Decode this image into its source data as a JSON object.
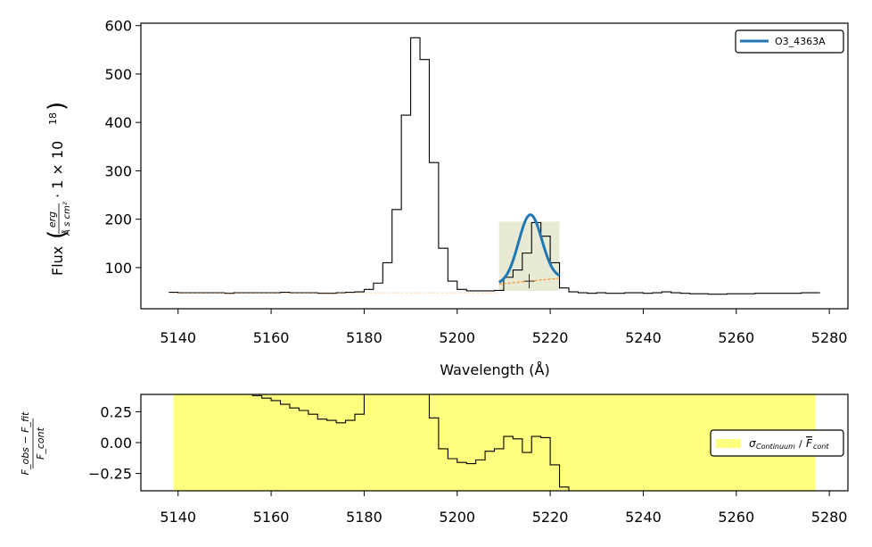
{
  "chart_data": [
    {
      "type": "line",
      "title": "",
      "xlabel": "Wavelength (Å)",
      "ylabel": "Flux",
      "ylabel_unit_numerator": "erg",
      "ylabel_unit_denominator": "Å s cm²",
      "ylabel_scale": "· 1 × 10",
      "ylabel_exponent": "18",
      "xlim": [
        5132,
        5284
      ],
      "ylim": [
        15,
        605
      ],
      "xticks": [
        5140,
        5160,
        5180,
        5200,
        5220,
        5240,
        5260,
        5280
      ],
      "yticks": [
        100,
        200,
        300,
        400,
        500,
        600
      ],
      "legend_location": "top-right",
      "legend": [
        "O3_4363A"
      ],
      "colors": {
        "spectrum": "#000000",
        "fit": "#1f77b4",
        "continuum": "#ff7f0e",
        "band": "#e9ead4"
      },
      "spectrum_step": {
        "x": [
          5139,
          5141,
          5143,
          5145,
          5147,
          5149,
          5151,
          5153,
          5155,
          5157,
          5159,
          5161,
          5163,
          5165,
          5167,
          5169,
          5171,
          5173,
          5175,
          5177,
          5179,
          5181,
          5183,
          5185,
          5187,
          5189,
          5191,
          5193,
          5195,
          5197,
          5199,
          5201,
          5203,
          5205,
          5207,
          5209,
          5211,
          5213,
          5215,
          5217,
          5219,
          5221,
          5223,
          5225,
          5227,
          5229,
          5231,
          5233,
          5235,
          5237,
          5239,
          5241,
          5243,
          5245,
          5247,
          5249,
          5251,
          5253,
          5255,
          5257,
          5259,
          5261,
          5263,
          5265,
          5267,
          5269,
          5271,
          5273,
          5275,
          5277
        ],
        "y": [
          49,
          48,
          48,
          48,
          48,
          48,
          47,
          48,
          48,
          48,
          48,
          48,
          49,
          48,
          48,
          48,
          47,
          47,
          48,
          49,
          50,
          55,
          68,
          110,
          220,
          415,
          575,
          530,
          317,
          140,
          72,
          55,
          52,
          52,
          52,
          53,
          80,
          95,
          130,
          193,
          165,
          110,
          58,
          50,
          48,
          47,
          48,
          47,
          47,
          48,
          48,
          47,
          48,
          50,
          48,
          47,
          46,
          46,
          45,
          45,
          46,
          46,
          46,
          47,
          47,
          47,
          47,
          47,
          48,
          48
        ]
      },
      "gaussian_fit": {
        "name": "O3_4363A",
        "x_range": [
          5209,
          5222
        ],
        "center": 5215.7,
        "amplitude": 137,
        "sigma": 2.5,
        "baseline_start": 66,
        "baseline_end": 78
      },
      "continuum_line": {
        "x": [
          5209,
          5222
        ],
        "y": [
          66,
          78
        ]
      },
      "fit_band": {
        "x": [
          5209,
          5222
        ],
        "top": 195,
        "bottom": 52
      },
      "marker": {
        "x": 5215.5,
        "y": 72
      }
    },
    {
      "type": "line",
      "title": "",
      "xlabel": "",
      "ylabel": "F_obs − F_fit / F_cont",
      "ylabel_numerator": "F_obs − F_fit",
      "ylabel_denominator": "F_cont",
      "xlim": [
        5132,
        5284
      ],
      "ylim": [
        -0.39,
        0.39
      ],
      "xticks": [
        5140,
        5160,
        5180,
        5200,
        5220,
        5240,
        5260,
        5280
      ],
      "yticks": [
        0.25,
        0.0,
        -0.25
      ],
      "ytick_labels": [
        "0.25",
        "0.00",
        "−0.25"
      ],
      "legend_location": "center-right",
      "legend": [
        "σ_Continuum / F̄_cont"
      ],
      "legend_main": "σ",
      "legend_sub": "Continuum",
      "legend_denom": "F",
      "legend_denom_sub": "cont",
      "band": {
        "x": [
          5139,
          5277
        ],
        "color": "#ffff7f"
      },
      "residual_step": {
        "x": [
          5155,
          5157,
          5159,
          5161,
          5163,
          5165,
          5167,
          5169,
          5171,
          5173,
          5175,
          5177,
          5179,
          5181,
          5193,
          5195,
          5197,
          5199,
          5201,
          5203,
          5205,
          5207,
          5209,
          5211,
          5213,
          5215,
          5217,
          5219,
          5221,
          5223,
          5225
        ],
        "y": [
          0.39,
          0.38,
          0.36,
          0.34,
          0.31,
          0.28,
          0.26,
          0.23,
          0.19,
          0.18,
          0.16,
          0.18,
          0.23,
          0.39,
          0.39,
          0.2,
          -0.05,
          -0.13,
          -0.16,
          -0.17,
          -0.14,
          -0.07,
          -0.05,
          0.05,
          0.03,
          -0.08,
          0.05,
          0.04,
          -0.18,
          -0.36,
          -0.39
        ]
      }
    }
  ]
}
